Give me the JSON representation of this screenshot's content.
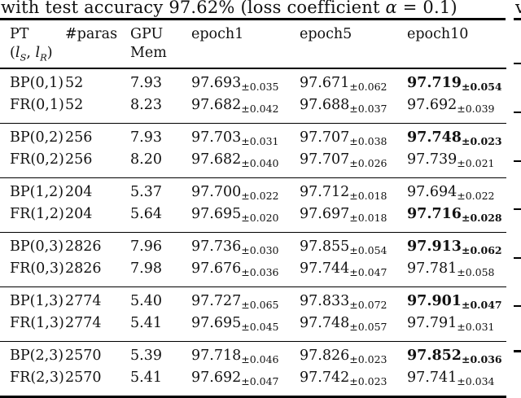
{
  "caption": {
    "pre": "with test accuracy 97.62% (loss coefficient ",
    "alpha": "α",
    "post": " = 0.1)"
  },
  "neighbor_column_fragment": "v",
  "table": {
    "headers": {
      "pt1": "PT",
      "pt2": {
        "open": "(",
        "l1": "l",
        "s1": "S",
        "comma": ", ",
        "l2": "l",
        "s2": "R",
        "close": ")"
      },
      "paras": "#paras",
      "gpu1": "GPU",
      "gpu2": "Mem",
      "epoch1": "epoch1",
      "epoch5": "epoch5",
      "epoch10": "epoch10"
    },
    "groups": [
      {
        "rows": [
          {
            "pt": "BP(0,1)",
            "paras": "52",
            "gpu": "7.93",
            "e1": {
              "v": "97.693",
              "s": "±0.035",
              "b": 0
            },
            "e5": {
              "v": "97.671",
              "s": "±0.062",
              "b": 0
            },
            "e10": {
              "v": "97.719",
              "s": "±0.054",
              "b": 1
            }
          },
          {
            "pt": "FR(0,1)",
            "paras": "52",
            "gpu": "8.23",
            "e1": {
              "v": "97.682",
              "s": "±0.042",
              "b": 0
            },
            "e5": {
              "v": "97.688",
              "s": "±0.037",
              "b": 0
            },
            "e10": {
              "v": "97.692",
              "s": "±0.039",
              "b": 0
            }
          }
        ]
      },
      {
        "rows": [
          {
            "pt": "BP(0,2)",
            "paras": "256",
            "gpu": "7.93",
            "e1": {
              "v": "97.703",
              "s": "±0.031",
              "b": 0
            },
            "e5": {
              "v": "97.707",
              "s": "±0.038",
              "b": 0
            },
            "e10": {
              "v": "97.748",
              "s": "±0.023",
              "b": 1
            }
          },
          {
            "pt": "FR(0,2)",
            "paras": "256",
            "gpu": "8.20",
            "e1": {
              "v": "97.682",
              "s": "±0.040",
              "b": 0
            },
            "e5": {
              "v": "97.707",
              "s": "±0.026",
              "b": 0
            },
            "e10": {
              "v": "97.739",
              "s": "±0.021",
              "b": 0
            }
          }
        ]
      },
      {
        "rows": [
          {
            "pt": "BP(1,2)",
            "paras": "204",
            "gpu": "5.37",
            "e1": {
              "v": "97.700",
              "s": "±0.022",
              "b": 0
            },
            "e5": {
              "v": "97.712",
              "s": "±0.018",
              "b": 0
            },
            "e10": {
              "v": "97.694",
              "s": "±0.022",
              "b": 0
            }
          },
          {
            "pt": "FR(1,2)",
            "paras": "204",
            "gpu": "5.64",
            "e1": {
              "v": "97.695",
              "s": "±0.020",
              "b": 0
            },
            "e5": {
              "v": "97.697",
              "s": "±0.018",
              "b": 0
            },
            "e10": {
              "v": "97.716",
              "s": "±0.028",
              "b": 1
            }
          }
        ]
      },
      {
        "rows": [
          {
            "pt": "BP(0,3)",
            "paras": "2826",
            "gpu": "7.96",
            "e1": {
              "v": "97.736",
              "s": "±0.030",
              "b": 0
            },
            "e5": {
              "v": "97.855",
              "s": "±0.054",
              "b": 0
            },
            "e10": {
              "v": "97.913",
              "s": "±0.062",
              "b": 1
            }
          },
          {
            "pt": "FR(0,3)",
            "paras": "2826",
            "gpu": "7.98",
            "e1": {
              "v": "97.676",
              "s": "±0.036",
              "b": 0
            },
            "e5": {
              "v": "97.744",
              "s": "±0.047",
              "b": 0
            },
            "e10": {
              "v": "97.781",
              "s": "±0.058",
              "b": 0
            }
          }
        ]
      },
      {
        "rows": [
          {
            "pt": "BP(1,3)",
            "paras": "2774",
            "gpu": "5.40",
            "e1": {
              "v": "97.727",
              "s": "±0.065",
              "b": 0
            },
            "e5": {
              "v": "97.833",
              "s": "±0.072",
              "b": 0
            },
            "e10": {
              "v": "97.901",
              "s": "±0.047",
              "b": 1
            }
          },
          {
            "pt": "FR(1,3)",
            "paras": "2774",
            "gpu": "5.41",
            "e1": {
              "v": "97.695",
              "s": "±0.045",
              "b": 0
            },
            "e5": {
              "v": "97.748",
              "s": "±0.057",
              "b": 0
            },
            "e10": {
              "v": "97.791",
              "s": "±0.031",
              "b": 0
            }
          }
        ]
      },
      {
        "rows": [
          {
            "pt": "BP(2,3)",
            "paras": "2570",
            "gpu": "5.39",
            "e1": {
              "v": "97.718",
              "s": "±0.046",
              "b": 0
            },
            "e5": {
              "v": "97.826",
              "s": "±0.023",
              "b": 0
            },
            "e10": {
              "v": "97.852",
              "s": "±0.036",
              "b": 1
            }
          },
          {
            "pt": "FR(2,3)",
            "paras": "2570",
            "gpu": "5.41",
            "e1": {
              "v": "97.692",
              "s": "±0.047",
              "b": 0
            },
            "e5": {
              "v": "97.742",
              "s": "±0.023",
              "b": 0
            },
            "e10": {
              "v": "97.741",
              "s": "±0.034",
              "b": 0
            }
          }
        ]
      }
    ]
  }
}
